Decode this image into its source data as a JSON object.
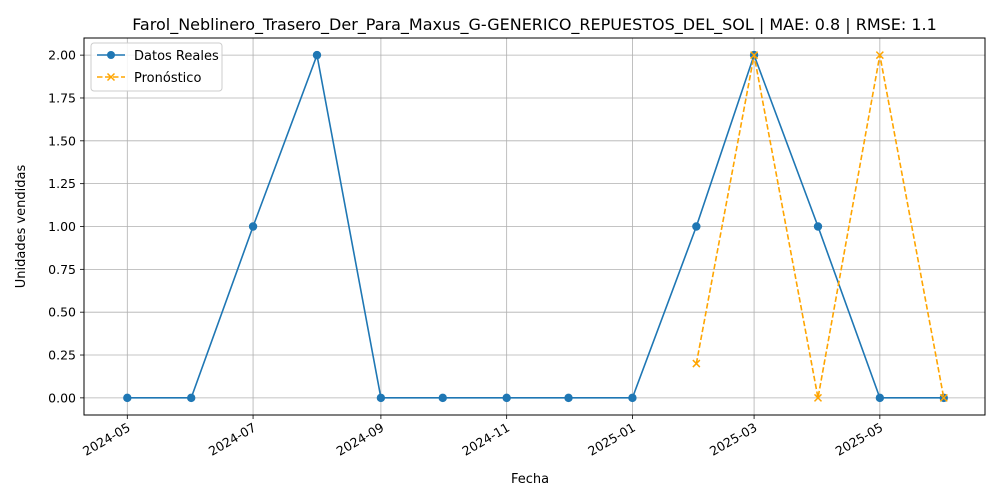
{
  "chart_data": {
    "type": "line",
    "title": "Farol_Neblinero_Trasero_Der_Para_Maxus_G-GENERICO_REPUESTOS_DEL_SOL | MAE: 0.8 | RMSE: 1.1",
    "xlabel": "Fecha",
    "ylabel": "Unidades vendidas",
    "xlim": [
      "2024-04-10",
      "2025-06-21"
    ],
    "ylim": [
      -0.1,
      2.1
    ],
    "x_ticks": [
      "2024-05",
      "2024-07",
      "2024-09",
      "2024-11",
      "2025-01",
      "2025-03",
      "2025-05"
    ],
    "y_ticks": [
      "0.00",
      "0.25",
      "0.50",
      "0.75",
      "1.00",
      "1.25",
      "1.50",
      "1.75",
      "2.00"
    ],
    "grid": true,
    "legend_position": "top-left",
    "series": [
      {
        "name": "Datos Reales",
        "color": "#1f77b4",
        "style": "solid",
        "marker": "circle",
        "x": [
          "2024-05-01",
          "2024-06-01",
          "2024-07-01",
          "2024-08-01",
          "2024-09-01",
          "2024-10-01",
          "2024-11-01",
          "2024-12-01",
          "2025-01-01",
          "2025-02-01",
          "2025-03-01",
          "2025-04-01",
          "2025-05-01",
          "2025-06-01"
        ],
        "values": [
          0,
          0,
          1,
          2,
          0,
          0,
          0,
          0,
          0,
          1,
          2,
          1,
          0,
          0
        ]
      },
      {
        "name": "Pronóstico",
        "color": "#ffa500",
        "style": "dashed",
        "marker": "x",
        "x": [
          "2025-02-01",
          "2025-03-01",
          "2025-04-01",
          "2025-05-01",
          "2025-06-01"
        ],
        "values": [
          0.2,
          2.0,
          0.0,
          2.0,
          0.0
        ]
      }
    ]
  }
}
